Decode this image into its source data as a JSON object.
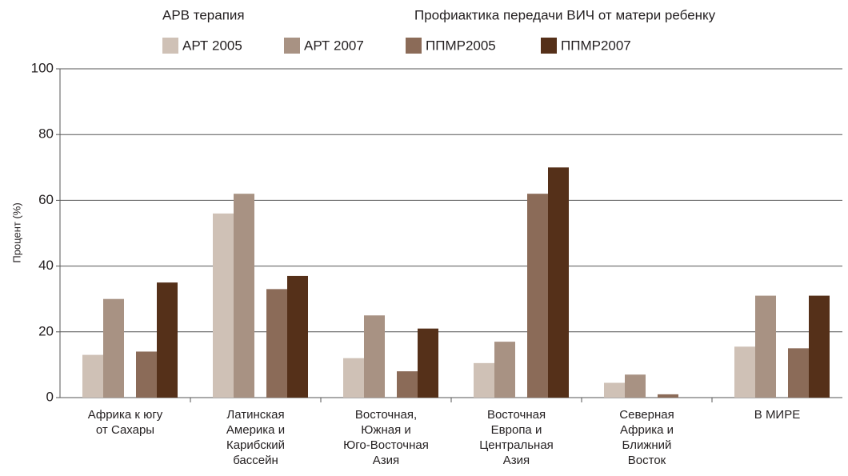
{
  "chart_data": {
    "type": "bar",
    "legend_groups": [
      "АРВ терапия",
      "Профиактика передачи ВИЧ от матери ребенку"
    ],
    "ylabel": "Процент (%)",
    "categories": [
      [
        "Африка к югу",
        "от Сахары"
      ],
      [
        "Латинская",
        "Америка и",
        "Карибский",
        "бассейн"
      ],
      [
        "Восточная,",
        "Южная и",
        "Юго-Восточная",
        "Азия"
      ],
      [
        "Восточная",
        "Европа и",
        "Центральная",
        "Азия"
      ],
      [
        "Северная",
        "Африка и",
        "Ближний",
        "Восток"
      ],
      [
        "В МИРЕ"
      ]
    ],
    "series": [
      {
        "name": "АРТ 2005",
        "color": "#cfc1b6",
        "values": [
          13,
          56,
          12,
          10.5,
          4.5,
          15.5
        ]
      },
      {
        "name": "АРТ 2007",
        "color": "#a89283",
        "values": [
          30,
          62,
          25,
          17,
          7,
          31
        ]
      },
      {
        "name": "ППМР2005",
        "color": "#8b6b58",
        "values": [
          14,
          33,
          8,
          62,
          1,
          15
        ]
      },
      {
        "name": "ППМР2007",
        "color": "#553019",
        "values": [
          35,
          37,
          21,
          70,
          null,
          31
        ]
      }
    ],
    "ylim": [
      0,
      100
    ],
    "yticks": [
      0,
      20,
      40,
      60,
      80,
      100
    ],
    "grid": true
  }
}
